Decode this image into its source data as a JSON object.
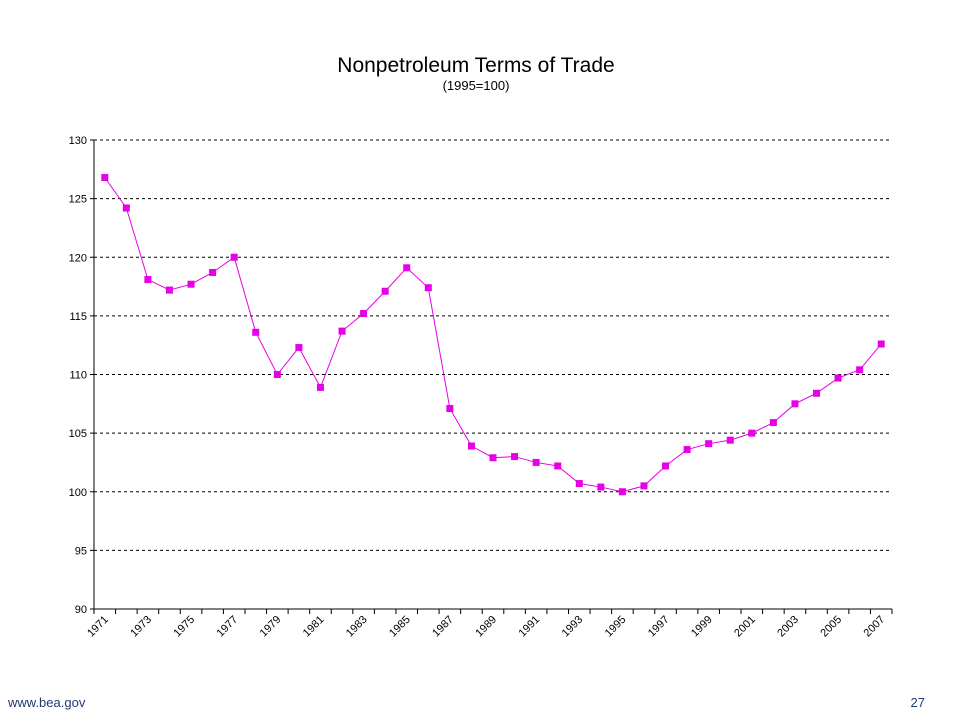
{
  "footer": {
    "website": "www.bea.gov",
    "page_number": "27"
  },
  "chart_data": {
    "type": "line",
    "title": "Nonpetroleum Terms of Trade",
    "subtitle": "(1995=100)",
    "xlabel": "",
    "ylabel": "",
    "ylim": [
      90,
      130
    ],
    "yticks": [
      "90",
      "95",
      "100",
      "105",
      "110",
      "115",
      "120",
      "125",
      "130"
    ],
    "x_tick_labels": [
      "1971",
      "1973",
      "1975",
      "1977",
      "1979",
      "1981",
      "1983",
      "1985",
      "1987",
      "1989",
      "1991",
      "1993",
      "1995",
      "1997",
      "1999",
      "2001",
      "2003",
      "2005",
      "2007"
    ],
    "grid": "horizontal dashed",
    "series_color": "#e600e6",
    "series": [
      {
        "x": [
          1971,
          1972,
          1973,
          1974,
          1975,
          1976,
          1977,
          1978,
          1979,
          1980,
          1981,
          1982,
          1983,
          1984,
          1985,
          1986,
          1987,
          1988,
          1989,
          1990,
          1991,
          1992,
          1993,
          1994,
          1995,
          1996,
          1997,
          1998,
          1999,
          2000,
          2001,
          2002,
          2003,
          2004,
          2005,
          2006,
          2007
        ],
        "values": [
          126.8,
          124.2,
          118.1,
          117.2,
          117.7,
          118.7,
          120.0,
          113.6,
          110.0,
          112.3,
          108.9,
          113.7,
          115.2,
          117.1,
          119.1,
          117.4,
          107.1,
          103.9,
          102.9,
          103.0,
          102.5,
          102.2,
          100.7,
          100.4,
          100.0,
          100.5,
          102.2,
          103.6,
          104.1,
          104.4,
          105.0,
          105.9,
          107.5,
          108.4,
          109.7,
          110.4,
          112.6
        ]
      }
    ]
  }
}
